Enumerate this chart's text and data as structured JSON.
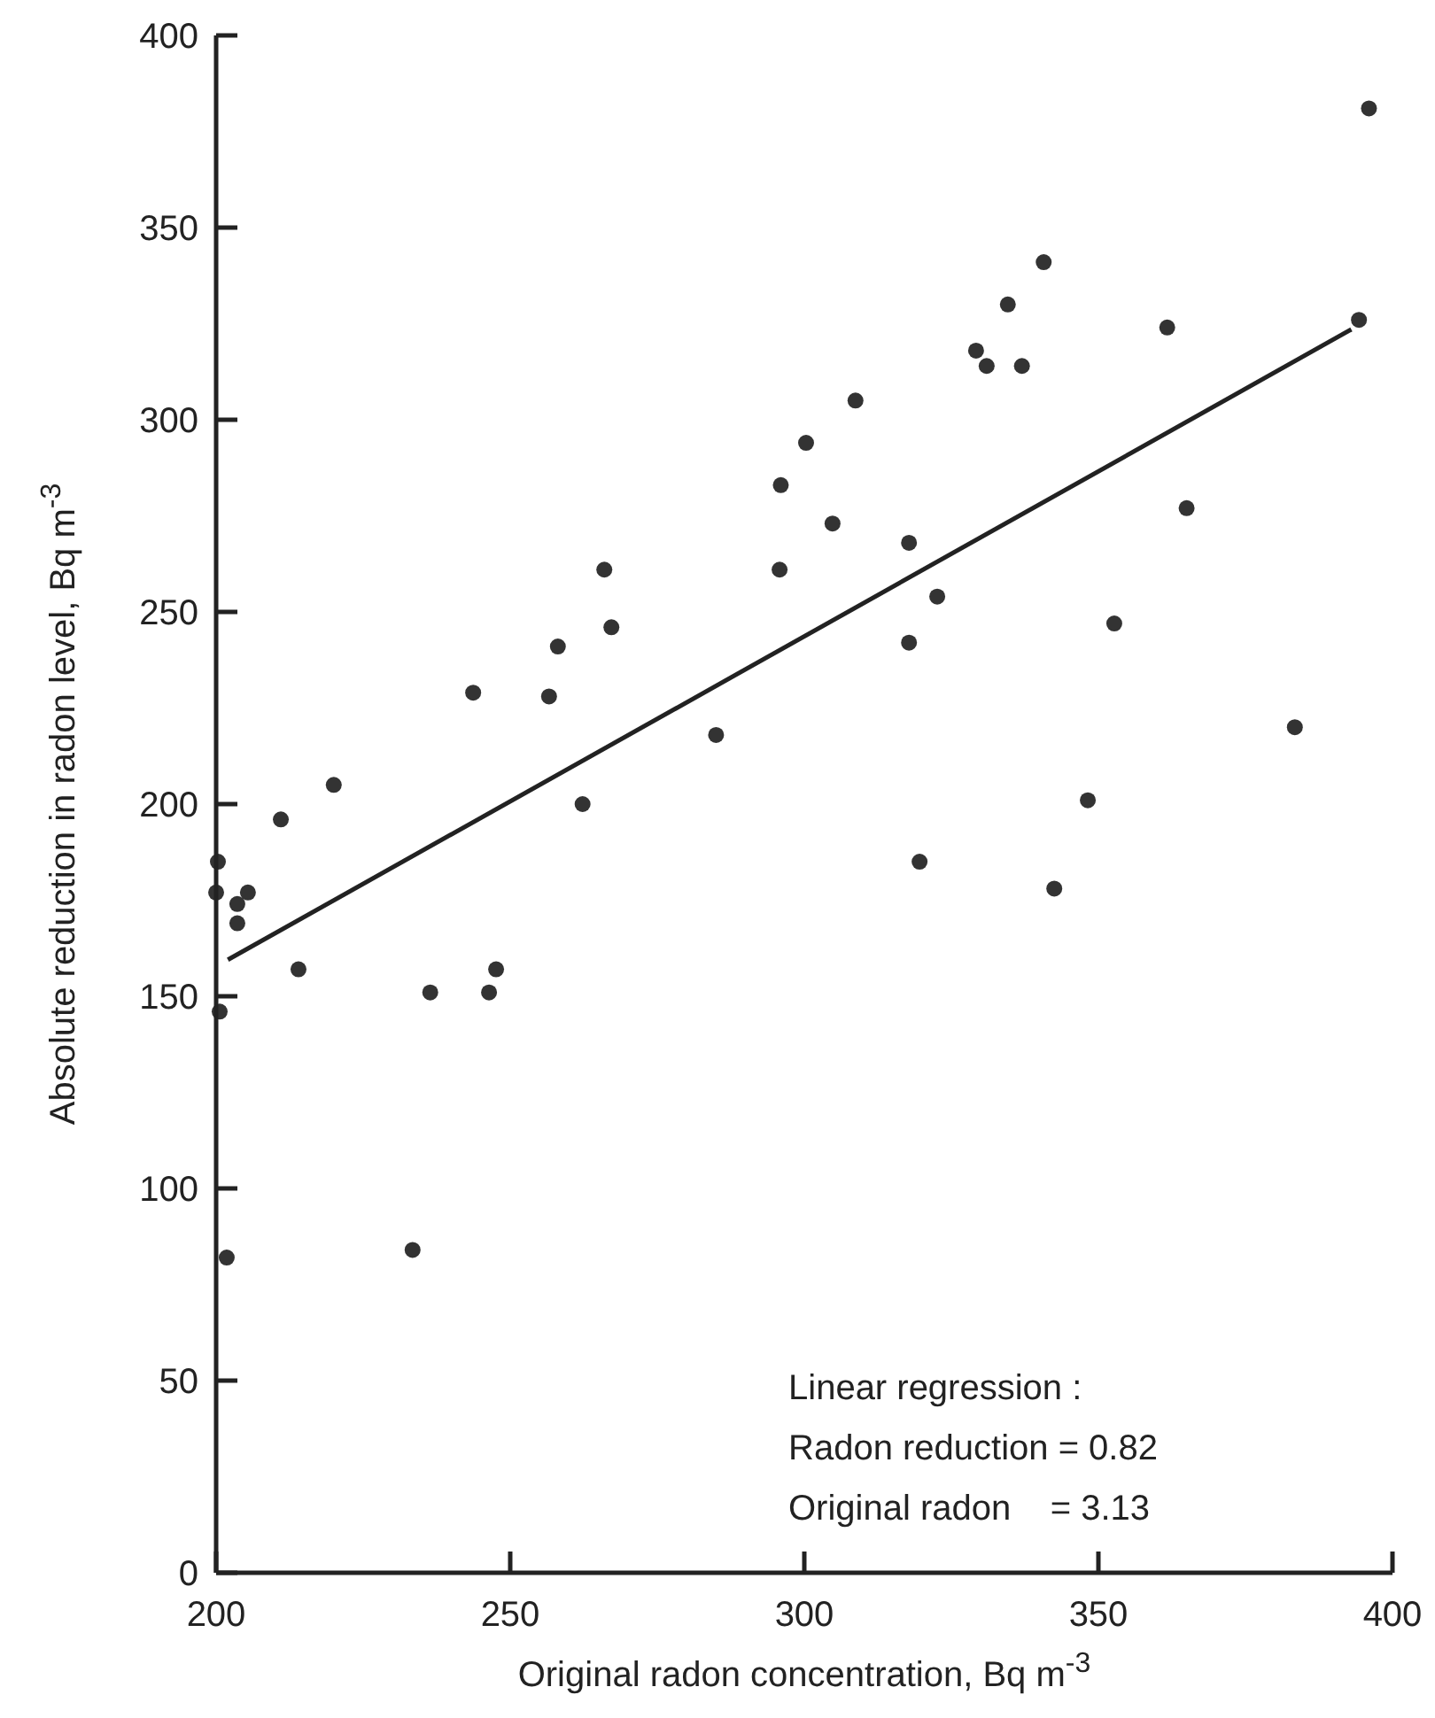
{
  "chart_data": {
    "type": "scatter",
    "xlabel": "Original radon concentration, Bq m$^{-3}$",
    "ylabel": "Absolute reduction in radon level, Bq m$^{-3}$",
    "xlim": [
      200,
      400
    ],
    "ylim": [
      0,
      400
    ],
    "xticks": [
      200,
      250,
      300,
      350,
      400
    ],
    "yticks": [
      0,
      50,
      100,
      150,
      200,
      250,
      300,
      350,
      400
    ],
    "grid": false,
    "series": [
      {
        "marker": "circle",
        "color": "#333333",
        "x": [
          220,
          211,
          200.3,
          200,
          205.4,
          203.6,
          203.6,
          214,
          236.4,
          246.4,
          247.6,
          200.6,
          201.8,
          233.4,
          308.7,
          300.3,
          296,
          304.8,
          317.8,
          266,
          295.8,
          267.2,
          258.1,
          317.8,
          243.7,
          256.6,
          285,
          262.3,
          396,
          340.7,
          334.6,
          361.7,
          394.3,
          329.2,
          331,
          337,
          322.6,
          365,
          352.7,
          383.4,
          348.2,
          342.5,
          319.6
        ],
        "values": [
          205,
          196,
          185,
          177,
          177,
          174,
          169,
          157,
          151,
          151,
          157,
          146,
          82,
          84,
          305,
          294,
          283,
          273,
          268,
          261,
          261,
          246,
          241,
          242,
          229,
          228,
          218,
          200,
          381,
          341,
          330,
          324,
          326,
          318,
          314,
          314,
          254,
          277,
          247,
          220,
          201,
          178,
          185
        ]
      },
      {
        "type": "line",
        "color": "#222222",
        "x": [
          202,
          393
        ],
        "values": [
          159.5,
          323.5
        ]
      }
    ],
    "annotations": [
      "Linear regression :",
      "Radon reduction = 0.82",
      "Original radon    = 3.13"
    ]
  }
}
